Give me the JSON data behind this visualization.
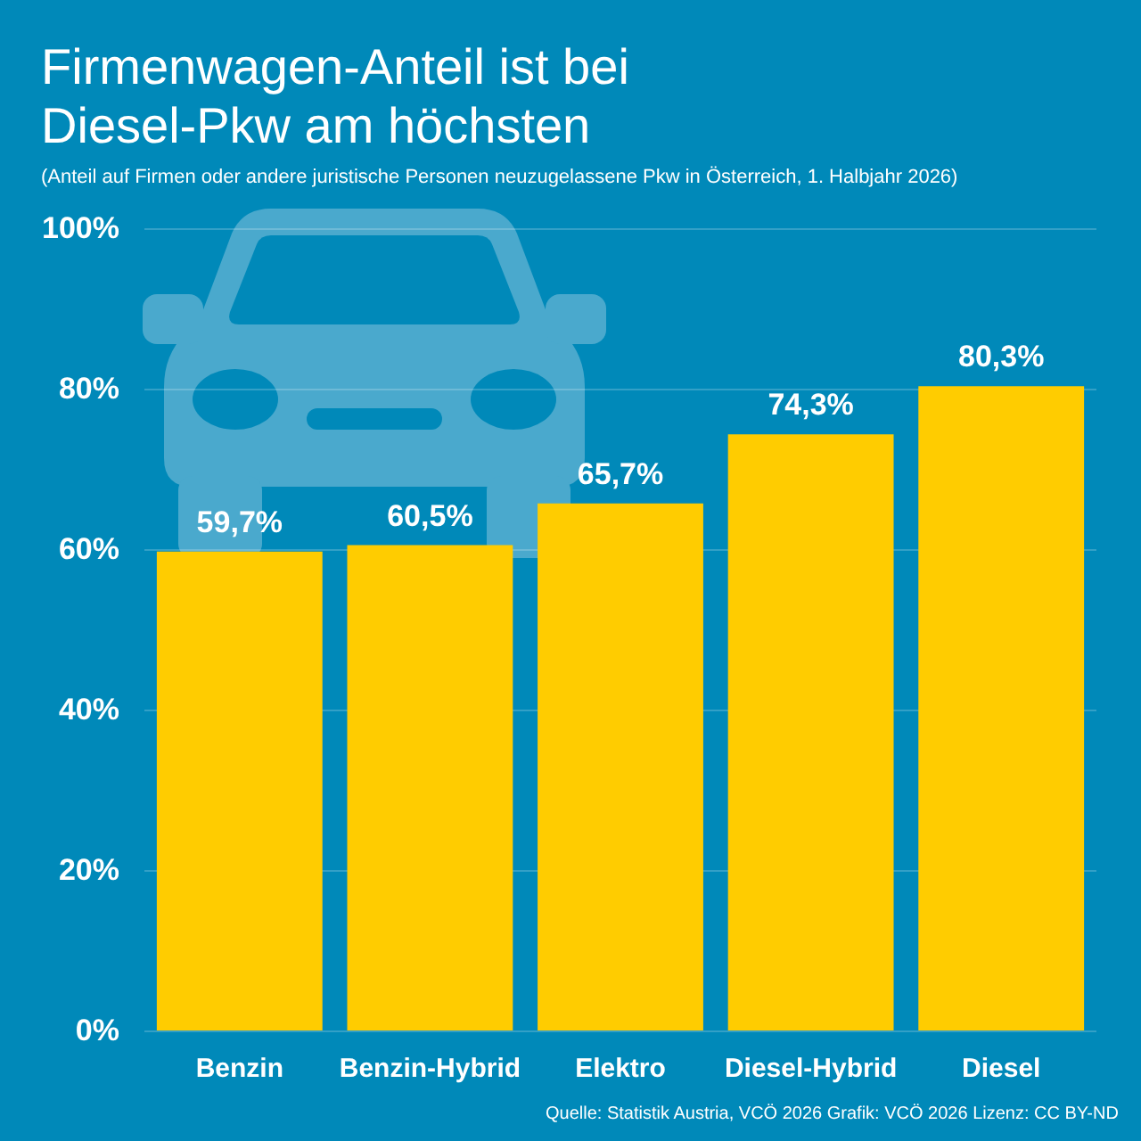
{
  "chart_data": {
    "type": "bar",
    "title": "Firmenwagen-Anteil ist bei Diesel-Pkw am höchsten",
    "subtitle": "(Anteil auf Firmen oder andere juristische Personen neuzugelassene Pkw in Österreich, 1. Halbjahr 2026)",
    "annotations": [
      "Quelle: Statistik Austria, VCÖ 2026 Grafik: VCÖ 2026 Lizenz: CC BY-ND"
    ],
    "categories": [
      "Benzin",
      "Benzin-Hybrid",
      "Elektro",
      "Diesel-Hybrid",
      "Diesel"
    ],
    "values": [
      59.7,
      60.5,
      65.7,
      74.3,
      80.3
    ],
    "color": "#ffcc00",
    "value_labels": [
      "59,7%",
      "60,5%",
      "65,7%",
      "74,3%",
      "80,3%"
    ],
    "ylim": [
      0,
      100
    ],
    "yticks": [
      {
        "value": 0,
        "label": "0%"
      },
      {
        "value": 20,
        "label": "20%"
      },
      {
        "value": 40,
        "label": "40%"
      },
      {
        "value": 60,
        "label": "60%"
      },
      {
        "value": 80,
        "label": "80%"
      },
      {
        "value": 100,
        "label": "100%"
      }
    ],
    "grid": "y"
  }
}
